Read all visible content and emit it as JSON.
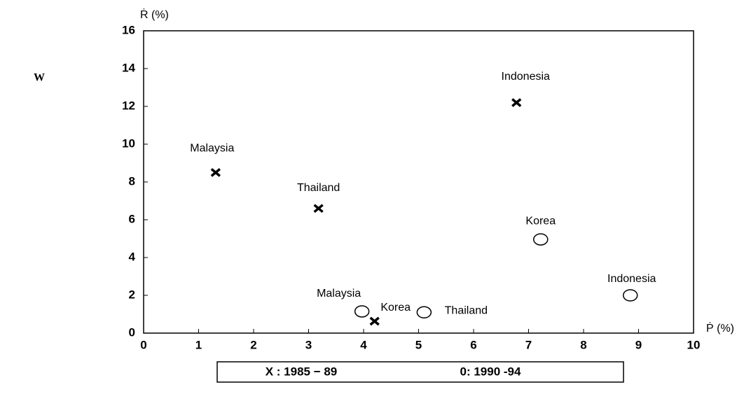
{
  "chart_data": {
    "type": "scatter",
    "x_label": "Ṗ (%)",
    "y_label": "Ṙ (%)",
    "annotation": "W",
    "xlim": [
      0,
      10
    ],
    "ylim": [
      0,
      16
    ],
    "xticks": [
      0,
      1,
      2,
      3,
      4,
      5,
      6,
      7,
      8,
      9,
      10
    ],
    "yticks": [
      0,
      2,
      4,
      6,
      8,
      10,
      12,
      14,
      16
    ],
    "series": [
      {
        "name": "X : 1985 − 89",
        "marker": "x",
        "color": "#000000",
        "labels": [
          "Malaysia",
          "Thailand",
          "Indonesia",
          "Korea"
        ],
        "x": [
          1.31,
          3.18,
          6.78,
          4.2
        ],
        "values": [
          8.5,
          6.6,
          12.2,
          0.63
        ]
      },
      {
        "name": "0: 1990 -94",
        "marker": "o",
        "color": "#000000",
        "labels": [
          "Malaysia",
          "Thailand",
          "Korea",
          "Indonesia"
        ],
        "x": [
          3.97,
          5.1,
          7.22,
          8.85
        ],
        "values": [
          1.15,
          1.1,
          4.96,
          2.0
        ]
      }
    ]
  }
}
